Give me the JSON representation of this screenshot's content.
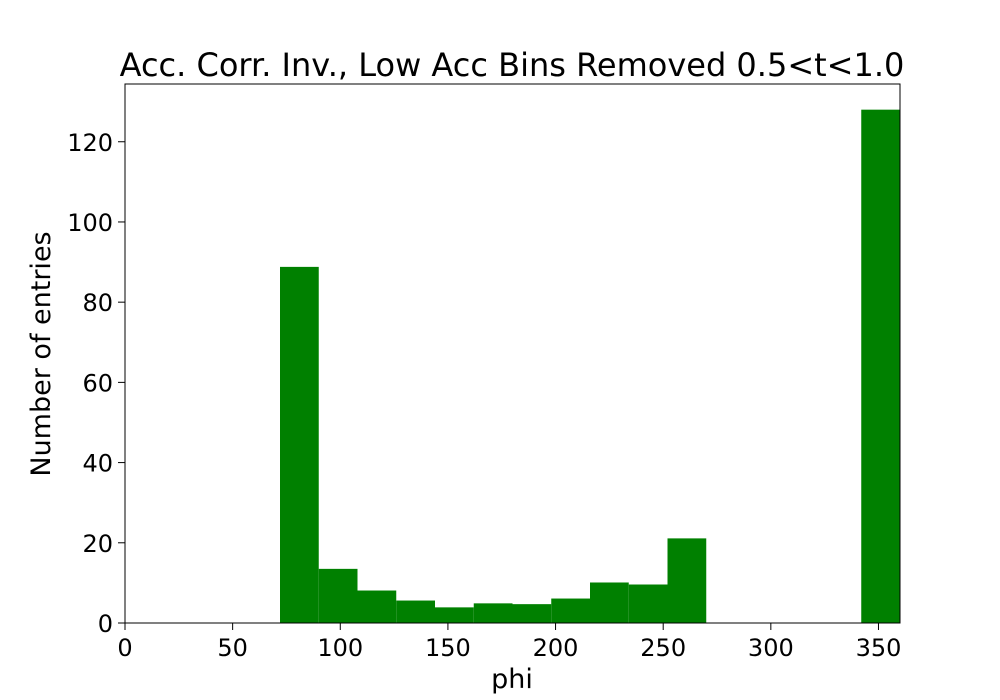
{
  "chart_data": {
    "type": "bar",
    "title": "Acc. Corr. Inv., Low Acc Bins Removed 0.5<t<1.0",
    "xlabel": "phi",
    "ylabel": "Number of entries",
    "xlim": [
      0,
      360
    ],
    "ylim": [
      0,
      134.4
    ],
    "xticks": [
      0,
      50,
      100,
      150,
      200,
      250,
      300,
      350
    ],
    "yticks": [
      0,
      20,
      40,
      60,
      80,
      100,
      120
    ],
    "grid": false,
    "bar_color": "#008000",
    "bins": [
      {
        "x0": 72,
        "x1": 90,
        "value": 88.8
      },
      {
        "x0": 90,
        "x1": 108,
        "value": 13.5
      },
      {
        "x0": 108,
        "x1": 126,
        "value": 8.1
      },
      {
        "x0": 126,
        "x1": 144,
        "value": 5.6
      },
      {
        "x0": 144,
        "x1": 162,
        "value": 3.9
      },
      {
        "x0": 162,
        "x1": 180,
        "value": 4.9
      },
      {
        "x0": 180,
        "x1": 198,
        "value": 4.7
      },
      {
        "x0": 198,
        "x1": 216,
        "value": 6.1
      },
      {
        "x0": 216,
        "x1": 234,
        "value": 10.1
      },
      {
        "x0": 234,
        "x1": 252,
        "value": 9.6
      },
      {
        "x0": 252,
        "x1": 270,
        "value": 21.1
      },
      {
        "x0": 342,
        "x1": 360,
        "value": 128.0
      }
    ]
  }
}
